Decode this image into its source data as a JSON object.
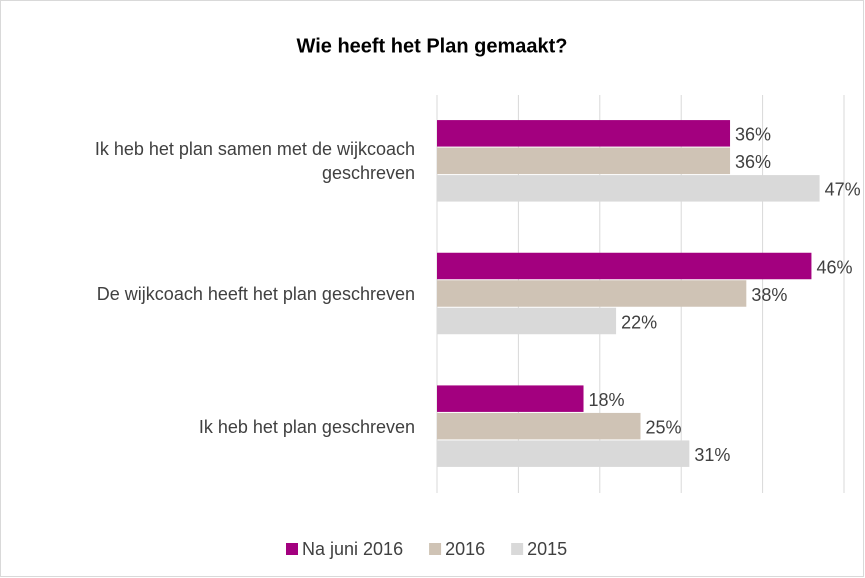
{
  "chart_data": {
    "type": "hbar",
    "title": "Wie heeft het Plan gemaakt?",
    "categories": [
      "Ik heb het plan samen met de wijkcoach geschreven",
      "De wijkcoach heeft het plan geschreven",
      "Ik heb het plan geschreven"
    ],
    "series": [
      {
        "name": "Na juni 2016",
        "color": "#a3007f",
        "values": [
          36,
          46,
          18
        ],
        "value_labels": [
          "36%",
          "46%",
          "18%"
        ]
      },
      {
        "name": "2016",
        "color": "#cfc3b5",
        "values": [
          36,
          38,
          25
        ],
        "value_labels": [
          "36%",
          "38%",
          "25%"
        ]
      },
      {
        "name": "2015",
        "color": "#d9d9d9",
        "values": [
          47,
          22,
          31
        ],
        "value_labels": [
          "47%",
          "22%",
          "31%"
        ]
      }
    ],
    "xlim": [
      0,
      50
    ],
    "xticks": [
      0,
      10,
      20,
      30,
      40,
      50
    ],
    "grid": true,
    "legend": "bottom"
  }
}
